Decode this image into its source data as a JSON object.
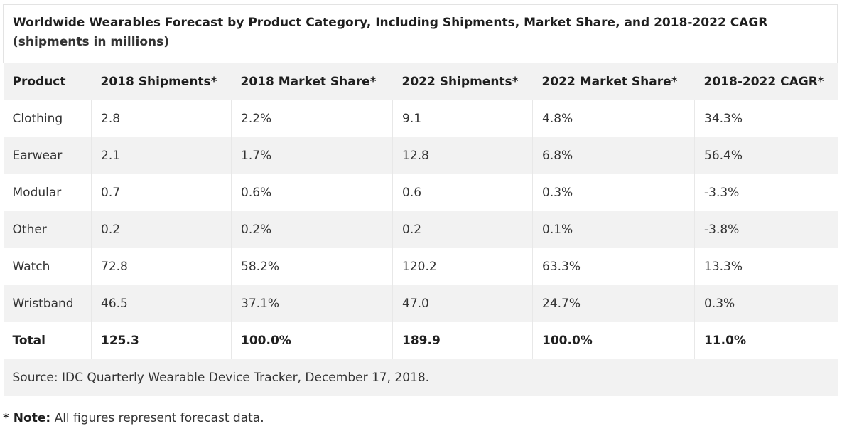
{
  "title": "Worldwide Wearables Forecast by Product Category, Including Shipments, Market Share, and 2018-2022 CAGR",
  "subtitle": "(shipments in millions)",
  "columns": [
    "Product",
    "2018 Shipments*",
    "2018 Market Share*",
    "2022 Shipments*",
    "2022 Market Share*",
    "2018-2022 CAGR*"
  ],
  "rows": [
    [
      "Clothing",
      "2.8",
      "2.2%",
      "9.1",
      "4.8%",
      "34.3%"
    ],
    [
      "Earwear",
      "2.1",
      "1.7%",
      "12.8",
      "6.8%",
      "56.4%"
    ],
    [
      "Modular",
      "0.7",
      "0.6%",
      "0.6",
      "0.3%",
      "-3.3%"
    ],
    [
      "Other",
      "0.2",
      "0.2%",
      "0.2",
      "0.1%",
      "-3.8%"
    ],
    [
      "Watch",
      "72.8",
      "58.2%",
      "120.2",
      "63.3%",
      "13.3%"
    ],
    [
      "Wristband",
      "46.5",
      "37.1%",
      "47.0",
      "24.7%",
      "0.3%"
    ]
  ],
  "total": [
    "Total",
    "125.3",
    "100.0%",
    "189.9",
    "100.0%",
    "11.0%"
  ],
  "source": "Source: IDC Quarterly Wearable Device Tracker, December 17, 2018.",
  "note": {
    "label": "* Note:",
    "text": " All figures represent forecast data."
  }
}
